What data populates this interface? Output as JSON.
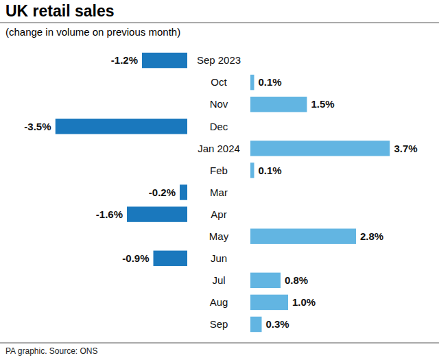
{
  "chart_data": {
    "type": "bar",
    "orientation": "horizontal",
    "title": "UK retail sales",
    "subtitle": "(change in volume on previous month)",
    "source": "PA graphic. Source: ONS",
    "categories": [
      "Sep 2023",
      "Oct",
      "Nov",
      "Dec",
      "Jan 2024",
      "Feb",
      "Mar",
      "Apr",
      "May",
      "Jun",
      "Jul",
      "Aug",
      "Sep"
    ],
    "values": [
      -1.2,
      0.1,
      1.5,
      -3.5,
      3.7,
      0.1,
      -0.2,
      -1.6,
      2.8,
      -0.9,
      0.8,
      1.0,
      0.3
    ],
    "value_labels": [
      "-1.2%",
      "0.1%",
      "1.5%",
      "-3.5%",
      "3.7%",
      "0.1%",
      "-0.2%",
      "-1.6%",
      "2.8%",
      "-0.9%",
      "0.8%",
      "1.0%",
      "0.3%"
    ],
    "colors": [
      "#1a78bd",
      "#62b5e2",
      "#62b5e2",
      "#1a78bd",
      "#62b5e2",
      "#62b5e2",
      "#1a78bd",
      "#1a78bd",
      "#62b5e2",
      "#1a78bd",
      "#62b5e2",
      "#62b5e2",
      "#62b5e2"
    ],
    "xlim": [
      -3.5,
      3.7
    ],
    "data_labels": true,
    "tick_labels": "y",
    "grid": false
  }
}
